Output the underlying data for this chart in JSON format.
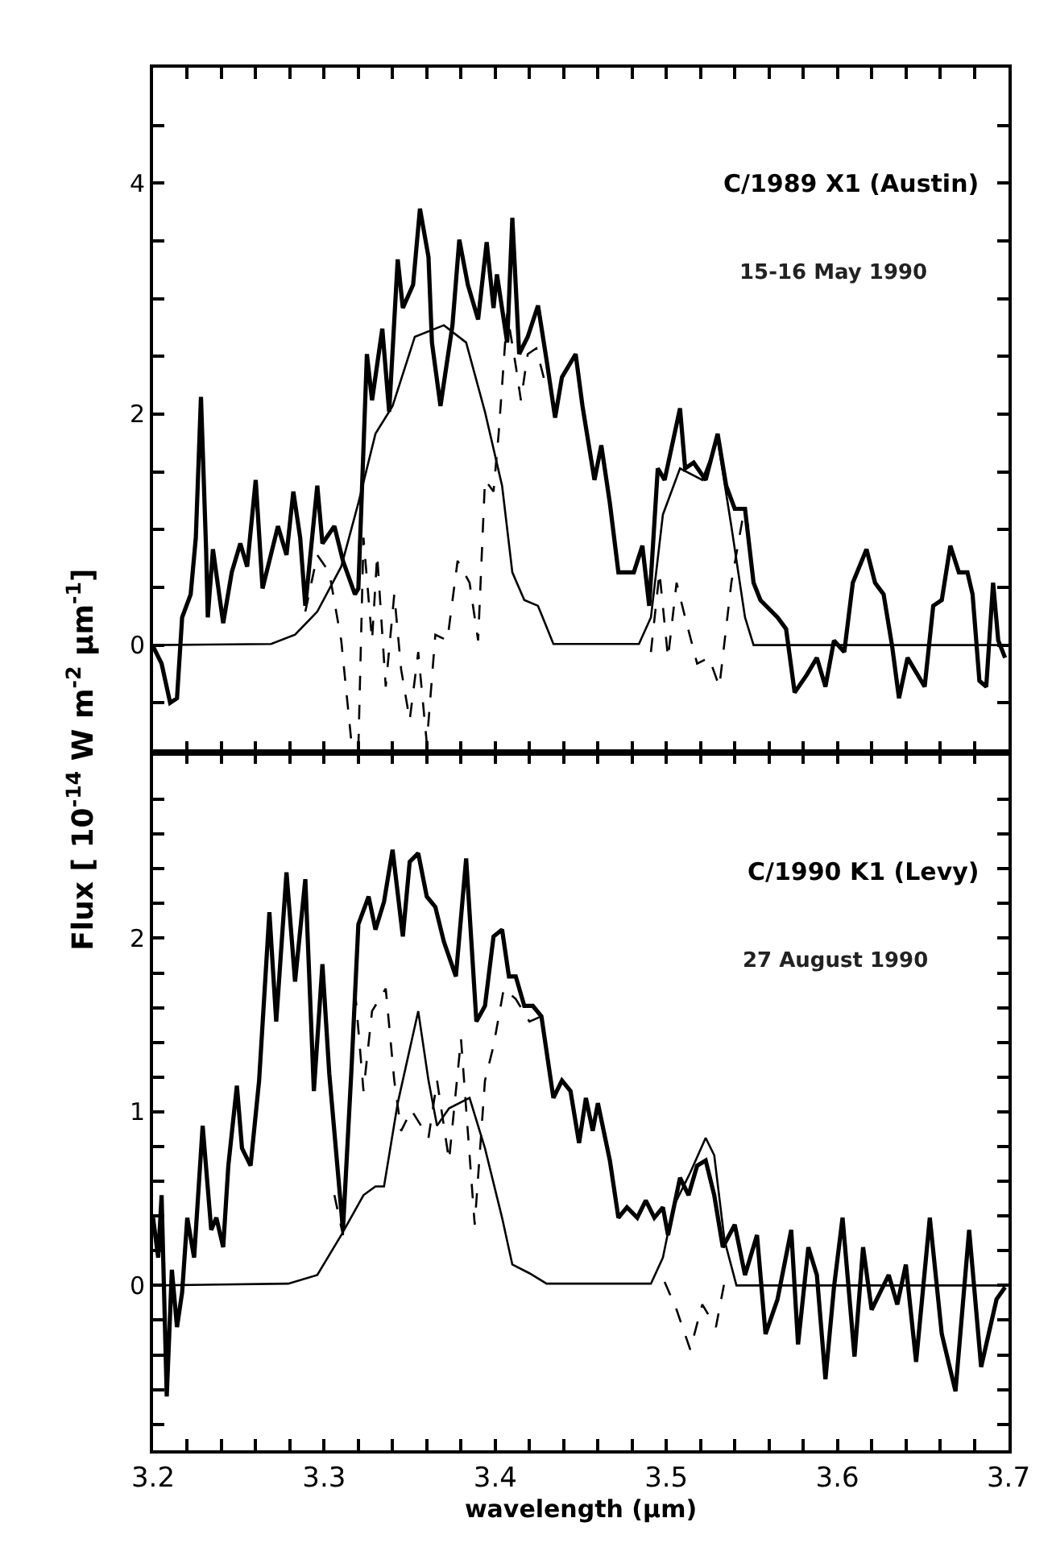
{
  "chart_data": [
    {
      "type": "line",
      "title": "C/1989 X1 (Austin)",
      "subtitle": "15-16 May 1990",
      "ylabel": "Flux [ 10$^{-14}$ W m$^{-2}$ μm$^{-1}$]",
      "xlim": [
        3.2,
        3.7
      ],
      "ylim": [
        -0.93,
        5.0
      ],
      "tick_labels": "y",
      "marker": "none",
      "xticks": [
        3.2,
        {
          "value": 3.22,
          "label": null
        },
        {
          "value": 3.24,
          "label": null
        },
        {
          "value": 3.26,
          "label": null
        },
        {
          "value": 3.28,
          "label": null
        },
        3.3,
        {
          "value": 3.32,
          "label": null
        },
        {
          "value": 3.34,
          "label": null
        },
        {
          "value": 3.36,
          "label": null
        },
        {
          "value": 3.38,
          "label": null
        },
        3.4,
        {
          "value": 3.42,
          "label": null
        },
        {
          "value": 3.44,
          "label": null
        },
        {
          "value": 3.46,
          "label": null
        },
        {
          "value": 3.48,
          "label": null
        },
        3.5,
        {
          "value": 3.52,
          "label": null
        },
        {
          "value": 3.54,
          "label": null
        },
        {
          "value": 3.56,
          "label": null
        },
        {
          "value": 3.58,
          "label": null
        },
        3.6,
        {
          "value": 3.62,
          "label": null
        },
        {
          "value": 3.64,
          "label": null
        },
        {
          "value": 3.66,
          "label": null
        },
        {
          "value": 3.68,
          "label": null
        },
        3.7
      ],
      "yticks": [
        {
          "value": -0.5,
          "label": null
        },
        0,
        {
          "value": 0.5,
          "label": null
        },
        {
          "value": 1,
          "label": null
        },
        {
          "value": 1.5,
          "label": null
        },
        2,
        {
          "value": 2.5,
          "label": null
        },
        {
          "value": 3,
          "label": null
        },
        {
          "value": 3.5,
          "label": null
        },
        4,
        {
          "value": 4.5,
          "label": null
        }
      ],
      "series": [
        {
          "color": "#000000",
          "line_style": "solid",
          "x": [
            3.2,
            3.205,
            3.21,
            3.214,
            3.217,
            3.222,
            3.225,
            3.228,
            3.231,
            3.232,
            3.235,
            3.241,
            3.246,
            3.251,
            3.255,
            3.26,
            3.264,
            3.273,
            3.278,
            3.282,
            3.286,
            3.289,
            3.296,
            3.299,
            3.306,
            3.311,
            3.318,
            3.32,
            3.325,
            3.328,
            3.334,
            3.338,
            3.343,
            3.346,
            3.352,
            3.356,
            3.361,
            3.363,
            3.368,
            3.375,
            3.379,
            3.384,
            3.39,
            3.395,
            3.399,
            3.401,
            3.407,
            3.41,
            3.414,
            3.419,
            3.425,
            3.43,
            3.435,
            3.439,
            3.447,
            3.451,
            3.458,
            3.462,
            3.467,
            3.472,
            3.481,
            3.486,
            3.49,
            3.495,
            3.499,
            3.508,
            3.511,
            3.516,
            3.523,
            3.53,
            3.535,
            3.54,
            3.546,
            3.551,
            3.555,
            3.565,
            3.57,
            3.575,
            3.582,
            3.588,
            3.593,
            3.598,
            3.604,
            3.609,
            3.617,
            3.622,
            3.627,
            3.632,
            3.636,
            3.641,
            3.651,
            3.656,
            3.661,
            3.666,
            3.671,
            3.676,
            3.679,
            3.683,
            3.687,
            3.691,
            3.694,
            3.698
          ],
          "values": [
            -0.01,
            -0.16,
            -0.5,
            -0.46,
            0.24,
            0.44,
            0.93,
            2.15,
            0.83,
            0.24,
            0.83,
            0.19,
            0.63,
            0.88,
            0.68,
            1.43,
            0.49,
            1.03,
            0.78,
            1.33,
            0.93,
            0.34,
            1.38,
            0.88,
            1.03,
            0.73,
            0.44,
            0.49,
            2.52,
            2.12,
            2.74,
            2.02,
            3.34,
            2.92,
            3.12,
            3.78,
            3.36,
            2.62,
            2.07,
            2.77,
            3.51,
            3.12,
            2.82,
            3.49,
            2.92,
            3.21,
            2.62,
            3.7,
            2.52,
            2.67,
            2.94,
            2.47,
            1.97,
            2.32,
            2.52,
            2.07,
            1.43,
            1.73,
            1.23,
            0.63,
            0.63,
            0.86,
            0.34,
            1.53,
            1.43,
            2.05,
            1.53,
            1.58,
            1.43,
            1.83,
            1.38,
            1.18,
            1.18,
            0.54,
            0.39,
            0.24,
            0.14,
            -0.41,
            -0.26,
            -0.11,
            -0.36,
            0.04,
            -0.06,
            0.54,
            0.83,
            0.54,
            0.44,
            -0.01,
            -0.46,
            -0.11,
            -0.36,
            0.34,
            0.39,
            0.86,
            0.63,
            0.63,
            0.44,
            -0.31,
            -0.36,
            0.54,
            0.04,
            -0.11
          ]
        },
        {
          "color": "#000000",
          "line_style": "solid",
          "x": [
            3.2,
            3.269,
            3.283,
            3.296,
            3.31,
            3.32,
            3.33,
            3.34,
            3.353,
            3.37,
            3.383,
            3.394,
            3.404,
            3.41,
            3.417,
            3.425,
            3.434,
            3.484,
            3.491,
            3.498,
            3.508,
            3.521,
            3.53,
            3.538,
            3.546,
            3.551,
            3.7
          ],
          "values": [
            0,
            0.01,
            0.09,
            0.29,
            0.68,
            1.23,
            1.83,
            2.07,
            2.67,
            2.77,
            2.62,
            2.02,
            1.38,
            0.63,
            0.39,
            0.34,
            0.01,
            0.01,
            0.24,
            1.13,
            1.53,
            1.43,
            1.78,
            1.03,
            0.24,
            0,
            0
          ]
        },
        {
          "color": "#000000",
          "line_style": "dashed",
          "x": [
            3.289,
            3.296,
            3.303,
            3.31,
            3.316,
            3.32,
            3.323,
            3.328,
            3.331,
            3.336,
            3.341,
            3.345,
            3.35,
            3.355,
            3.36,
            3.365,
            3.372,
            3.378,
            3.385,
            3.39,
            3.394,
            3.399,
            3.402,
            3.407,
            3.412,
            3.415,
            3.419,
            3.424,
            3.43,
            3.46,
            3.491,
            3.496,
            3.501,
            3.506,
            3.511,
            3.518,
            3.525,
            3.531,
            3.538,
            3.545,
            3.548
          ],
          "values": [
            0.29,
            0.78,
            0.63,
            0.04,
            -0.85,
            -0.9,
            0.93,
            0.04,
            0.78,
            -0.36,
            0.44,
            -0.21,
            -0.65,
            -0.06,
            -0.85,
            0.09,
            0.04,
            0.73,
            0.54,
            0.04,
            1.43,
            1.33,
            1.83,
            2.87,
            2.42,
            2.12,
            2.52,
            2.57,
            2.22,
            null,
            -0.06,
            0.63,
            -0.11,
            0.54,
            0.24,
            -0.16,
            -0.11,
            -0.36,
            0.54,
            1.13,
            1.03
          ]
        }
      ]
    },
    {
      "type": "line",
      "title": "C/1990 K1 (Levy)",
      "subtitle": "27 August 1990",
      "xlabel": "wavelength (μm)",
      "xlim": [
        3.2,
        3.7
      ],
      "ylim": [
        -0.95,
        3.07
      ],
      "marker": "none",
      "xticks": [
        3.2,
        {
          "value": 3.22,
          "label": null
        },
        {
          "value": 3.24,
          "label": null
        },
        {
          "value": 3.26,
          "label": null
        },
        {
          "value": 3.28,
          "label": null
        },
        3.3,
        {
          "value": 3.32,
          "label": null
        },
        {
          "value": 3.34,
          "label": null
        },
        {
          "value": 3.36,
          "label": null
        },
        {
          "value": 3.38,
          "label": null
        },
        3.4,
        {
          "value": 3.42,
          "label": null
        },
        {
          "value": 3.44,
          "label": null
        },
        {
          "value": 3.46,
          "label": null
        },
        {
          "value": 3.48,
          "label": null
        },
        3.5,
        {
          "value": 3.52,
          "label": null
        },
        {
          "value": 3.54,
          "label": null
        },
        {
          "value": 3.56,
          "label": null
        },
        {
          "value": 3.58,
          "label": null
        },
        3.6,
        {
          "value": 3.62,
          "label": null
        },
        {
          "value": 3.64,
          "label": null
        },
        {
          "value": 3.66,
          "label": null
        },
        {
          "value": 3.68,
          "label": null
        },
        3.7
      ],
      "yticks": [
        {
          "value": -0.8,
          "label": null
        },
        {
          "value": -0.6,
          "label": null
        },
        {
          "value": -0.4,
          "label": null
        },
        {
          "value": -0.2,
          "label": null
        },
        0,
        {
          "value": 0.2,
          "label": null
        },
        {
          "value": 0.4,
          "label": null
        },
        {
          "value": 0.6,
          "label": null
        },
        {
          "value": 0.8,
          "label": null
        },
        1,
        {
          "value": 1.2,
          "label": null
        },
        {
          "value": 1.4,
          "label": null
        },
        {
          "value": 1.6,
          "label": null
        },
        {
          "value": 1.8,
          "label": null
        },
        2,
        {
          "value": 2.2,
          "label": null
        },
        {
          "value": 2.4,
          "label": null
        },
        {
          "value": 2.6,
          "label": null
        },
        {
          "value": 2.8,
          "label": null
        }
      ],
      "series": [
        {
          "color": "#000000",
          "line_style": "solid",
          "x": [
            3.2,
            3.203,
            3.205,
            3.208,
            3.211,
            3.214,
            3.217,
            3.22,
            3.224,
            3.229,
            3.234,
            3.237,
            3.241,
            3.244,
            3.249,
            3.252,
            3.257,
            3.262,
            3.268,
            3.272,
            3.278,
            3.283,
            3.289,
            3.294,
            3.299,
            3.303,
            3.311,
            3.316,
            3.32,
            3.326,
            3.33,
            3.335,
            3.34,
            3.346,
            3.35,
            3.355,
            3.36,
            3.365,
            3.37,
            3.377,
            3.383,
            3.389,
            3.394,
            3.399,
            3.404,
            3.408,
            3.412,
            3.417,
            3.422,
            3.427,
            3.434,
            3.439,
            3.444,
            3.449,
            3.453,
            3.457,
            3.46,
            3.467,
            3.472,
            3.477,
            3.483,
            3.488,
            3.493,
            3.498,
            3.501,
            3.508,
            3.513,
            3.518,
            3.523,
            3.528,
            3.533,
            3.54,
            3.546,
            3.553,
            3.558,
            3.565,
            3.573,
            3.577,
            3.583,
            3.588,
            3.593,
            3.598,
            3.603,
            3.61,
            3.615,
            3.62,
            3.625,
            3.63,
            3.635,
            3.64,
            3.646,
            3.654,
            3.661,
            3.669,
            3.677,
            3.684,
            3.693,
            3.698
          ],
          "values": [
            0.39,
            0.16,
            0.52,
            -0.64,
            0.09,
            -0.24,
            -0.04,
            0.39,
            0.16,
            0.92,
            0.32,
            0.39,
            0.22,
            0.69,
            1.15,
            0.79,
            0.69,
            1.18,
            2.15,
            1.52,
            2.38,
            1.75,
            2.34,
            1.12,
            1.85,
            1.22,
            0.32,
            1.25,
            2.08,
            2.24,
            2.05,
            2.21,
            2.51,
            2.01,
            2.44,
            2.49,
            2.24,
            2.18,
            1.98,
            1.78,
            2.46,
            1.52,
            1.61,
            2.01,
            2.05,
            1.78,
            1.78,
            1.61,
            1.61,
            1.55,
            1.08,
            1.18,
            1.12,
            0.82,
            1.08,
            0.89,
            1.05,
            0.72,
            0.39,
            0.45,
            0.39,
            0.49,
            0.39,
            0.45,
            0.29,
            0.62,
            0.52,
            0.69,
            0.72,
            0.52,
            0.22,
            0.35,
            0.06,
            0.29,
            -0.28,
            -0.08,
            0.32,
            -0.34,
            0.22,
            0.06,
            -0.54,
            -0.01,
            0.39,
            -0.41,
            0.22,
            -0.14,
            -0.04,
            0.06,
            -0.11,
            0.12,
            -0.44,
            0.39,
            -0.28,
            -0.61,
            0.32,
            -0.47,
            -0.08,
            -0.01
          ]
        },
        {
          "color": "#000000",
          "line_style": "solid",
          "x": [
            3.2,
            3.279,
            3.296,
            3.31,
            3.323,
            3.33,
            3.335,
            3.343,
            3.355,
            3.361,
            3.366,
            3.373,
            3.385,
            3.394,
            3.404,
            3.41,
            3.42,
            3.43,
            3.491,
            3.498,
            3.504,
            3.514,
            3.523,
            3.528,
            3.534,
            3.541,
            3.698
          ],
          "values": [
            0,
            0.01,
            0.06,
            0.29,
            0.52,
            0.57,
            0.57,
            1.05,
            1.58,
            1.18,
            0.92,
            1.02,
            1.08,
            0.79,
            0.39,
            0.12,
            0.07,
            0.01,
            0.01,
            0.16,
            0.45,
            0.65,
            0.85,
            0.75,
            0.26,
            0,
            0
          ]
        },
        {
          "color": "#000000",
          "line_style": "dashed",
          "x": [
            3.306,
            3.311,
            3.318,
            3.323,
            3.328,
            3.336,
            3.341,
            3.345,
            3.351,
            3.361,
            3.366,
            3.373,
            3.38,
            3.388,
            3.394,
            3.399,
            3.405,
            3.412,
            3.42,
            3.427,
            3.46,
            3.499,
            3.506,
            3.514,
            3.521,
            3.529,
            3.534
          ],
          "values": [
            0.52,
            0.29,
            1.71,
            1.12,
            1.58,
            1.71,
            1.18,
            0.89,
            1.01,
            0.85,
            1.18,
            0.72,
            1.42,
            0.35,
            1.18,
            1.38,
            1.71,
            1.65,
            1.52,
            1.55,
            null,
            0.02,
            -0.14,
            -0.37,
            -0.11,
            -0.24,
            0.02
          ]
        }
      ]
    }
  ]
}
